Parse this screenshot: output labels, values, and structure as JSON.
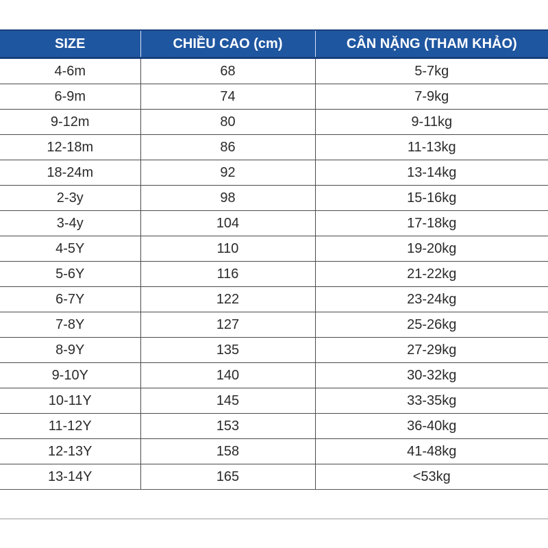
{
  "table": {
    "headers": [
      "SIZE",
      "CHIỀU CAO (cm)",
      "CÂN NẶNG (THAM KHẢO)"
    ],
    "rows": [
      [
        "4-6m",
        "68",
        "5-7kg"
      ],
      [
        "6-9m",
        "74",
        "7-9kg"
      ],
      [
        "9-12m",
        "80",
        "9-11kg"
      ],
      [
        "12-18m",
        "86",
        "11-13kg"
      ],
      [
        "18-24m",
        "92",
        "13-14kg"
      ],
      [
        "2-3y",
        "98",
        "15-16kg"
      ],
      [
        "3-4y",
        "104",
        "17-18kg"
      ],
      [
        "4-5Y",
        "110",
        "19-20kg"
      ],
      [
        "5-6Y",
        "116",
        "21-22kg"
      ],
      [
        "6-7Y",
        "122",
        "23-24kg"
      ],
      [
        "7-8Y",
        "127",
        "25-26kg"
      ],
      [
        "8-9Y",
        "135",
        "27-29kg"
      ],
      [
        "9-10Y",
        "140",
        "30-32kg"
      ],
      [
        "10-11Y",
        "145",
        "33-35kg"
      ],
      [
        "11-12Y",
        "153",
        "36-40kg"
      ],
      [
        "12-13Y",
        "158",
        "41-48kg"
      ],
      [
        "13-14Y",
        "165",
        "<53kg"
      ]
    ]
  },
  "colors": {
    "header_background": "#1f56a0",
    "header_text": "#ffffff",
    "cell_text": "#2a2a2a",
    "grid_lines": "#4a4a4a"
  }
}
